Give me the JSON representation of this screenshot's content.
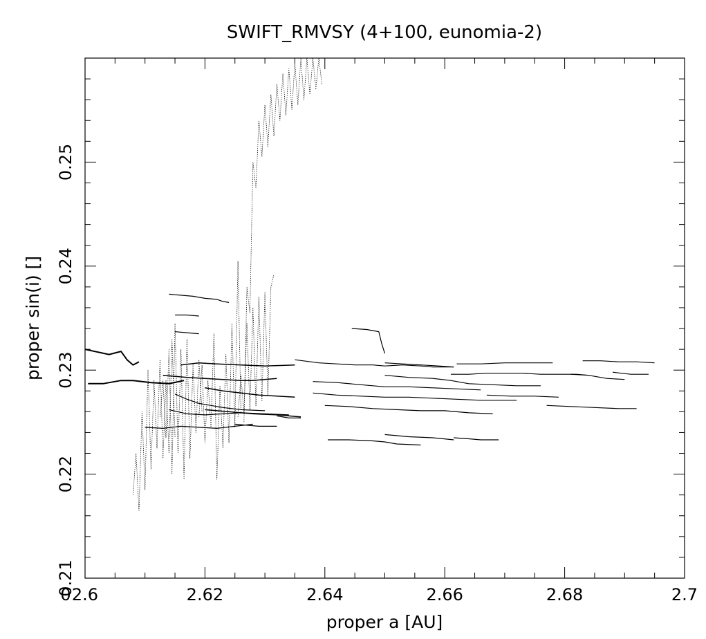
{
  "chart_data": {
    "type": "line",
    "title": "SWIFT_RMVSY (4+100, eunomia-2)",
    "xlabel": "proper a [AU]",
    "ylabel": "proper sin(i) []",
    "xlim": [
      2.6,
      2.7
    ],
    "ylim": [
      0.21,
      0.26
    ],
    "xticks": [
      {
        "value": 2.6,
        "label": "2.6"
      },
      {
        "value": 2.62,
        "label": "2.62"
      },
      {
        "value": 2.64,
        "label": "2.64"
      },
      {
        "value": 2.66,
        "label": "2.66"
      },
      {
        "value": 2.68,
        "label": "2.68"
      },
      {
        "value": 2.7,
        "label": "2.7"
      }
    ],
    "yticks": [
      {
        "value": 0.21,
        "label": "0.21"
      },
      {
        "value": 0.22,
        "label": "0.22"
      },
      {
        "value": 0.23,
        "label": "0.23"
      },
      {
        "value": 0.24,
        "label": "0.24"
      },
      {
        "value": 0.25,
        "label": "0.25"
      }
    ],
    "origin_label": "0",
    "grid": false,
    "legend": "none",
    "line_color": "#000000",
    "series": [
      {
        "style": "solid",
        "width": 2,
        "x": [
          2.6,
          2.604,
          2.606,
          2.607,
          2.608,
          2.609
        ],
        "y": [
          0.232,
          0.2315,
          0.2318,
          0.231,
          0.2305,
          0.2308
        ]
      },
      {
        "style": "solid",
        "width": 2,
        "x": [
          2.6005,
          2.603,
          2.606,
          2.608,
          2.611,
          2.614,
          2.6165
        ],
        "y": [
          0.2287,
          0.2287,
          0.229,
          0.229,
          0.2288,
          0.2287,
          0.229
        ]
      },
      {
        "style": "solid",
        "width": 1.5,
        "x": [
          2.613,
          2.617,
          2.62,
          2.623,
          2.626,
          2.628,
          2.632
        ],
        "y": [
          0.2295,
          0.2293,
          0.2292,
          0.2291,
          0.229,
          0.229,
          0.2292
        ]
      },
      {
        "style": "solid",
        "width": 1.5,
        "x": [
          2.616,
          2.619,
          2.622,
          2.626,
          2.63,
          2.635
        ],
        "y": [
          0.2305,
          0.2307,
          0.2306,
          0.2305,
          0.2304,
          0.2305
        ]
      },
      {
        "style": "solid",
        "width": 1.5,
        "x": [
          2.62,
          2.623,
          2.626,
          2.629,
          2.632,
          2.635
        ],
        "y": [
          0.2283,
          0.228,
          0.2278,
          0.2276,
          0.2275,
          0.2274
        ]
      },
      {
        "style": "solid",
        "width": 1.5,
        "x": [
          2.62,
          2.624,
          2.628,
          2.632,
          2.636
        ],
        "y": [
          0.2262,
          0.226,
          0.2258,
          0.2257,
          0.2255
        ]
      },
      {
        "style": "solid",
        "width": 1.2,
        "x": [
          2.61,
          2.613,
          2.616,
          2.619,
          2.622,
          2.625,
          2.628
        ],
        "y": [
          0.2245,
          0.2244,
          0.2246,
          0.2245,
          0.2244,
          0.2246,
          0.2248
        ]
      },
      {
        "style": "solid",
        "width": 1.2,
        "x": [
          2.614,
          2.616,
          2.618,
          2.62,
          2.622,
          2.623,
          2.624
        ],
        "y": [
          0.2373,
          0.2372,
          0.2371,
          0.2369,
          0.2368,
          0.2366,
          0.2365
        ]
      },
      {
        "style": "solid",
        "width": 1.2,
        "x": [
          2.615,
          2.617,
          2.619
        ],
        "y": [
          0.2353,
          0.2353,
          0.2352
        ]
      },
      {
        "style": "solid",
        "width": 1.2,
        "x": [
          2.615,
          2.617,
          2.619
        ],
        "y": [
          0.2337,
          0.2336,
          0.2335
        ]
      },
      {
        "style": "solid",
        "width": 1.2,
        "x": [
          2.615,
          2.617,
          2.619,
          2.621,
          2.623,
          2.626,
          2.63
        ],
        "y": [
          0.2277,
          0.2272,
          0.2268,
          0.2266,
          0.2264,
          0.2262,
          0.2261
        ]
      },
      {
        "style": "solid",
        "width": 1.2,
        "x": [
          2.614,
          2.617,
          2.62,
          2.623,
          2.626,
          2.63,
          2.634
        ],
        "y": [
          0.2262,
          0.2258,
          0.2257,
          0.2258,
          0.2259,
          0.2258,
          0.2257
        ]
      },
      {
        "style": "solid",
        "width": 1.2,
        "x": [
          2.635,
          2.639,
          2.642,
          2.645,
          2.648,
          2.65,
          2.653,
          2.656,
          2.658,
          2.6615
        ],
        "y": [
          0.231,
          0.2307,
          0.2306,
          0.2305,
          0.2305,
          0.2304,
          0.2305,
          0.2304,
          0.2303,
          0.2303
        ]
      },
      {
        "style": "solid",
        "width": 1.2,
        "x": [
          2.6445,
          2.647,
          2.649,
          2.6495,
          2.65
        ],
        "y": [
          0.234,
          0.2339,
          0.2337,
          0.2325,
          0.2316
        ]
      },
      {
        "style": "solid",
        "width": 1.2,
        "x": [
          2.65,
          2.653,
          2.656,
          2.659,
          2.6615
        ],
        "y": [
          0.2307,
          0.2306,
          0.2305,
          0.2304,
          0.2303
        ]
      },
      {
        "style": "solid",
        "width": 1.2,
        "x": [
          2.638,
          2.642,
          2.646,
          2.65,
          2.654,
          2.658,
          2.662,
          2.666
        ],
        "y": [
          0.2289,
          0.2288,
          0.2286,
          0.2284,
          0.2284,
          0.2283,
          0.2282,
          0.2281
        ]
      },
      {
        "style": "solid",
        "width": 1.2,
        "x": [
          2.638,
          2.642,
          2.646,
          2.65,
          2.654,
          2.658,
          2.662,
          2.666,
          2.672
        ],
        "y": [
          0.2278,
          0.2276,
          0.2275,
          0.2274,
          0.2274,
          0.2273,
          0.2272,
          0.2271,
          0.2271
        ]
      },
      {
        "style": "solid",
        "width": 1.2,
        "x": [
          2.64,
          2.644,
          2.648,
          2.652,
          2.656,
          2.66,
          2.664,
          2.668
        ],
        "y": [
          0.2266,
          0.2265,
          0.2263,
          0.2262,
          0.2261,
          0.2261,
          0.2259,
          0.2258
        ]
      },
      {
        "style": "solid",
        "width": 1.2,
        "x": [
          2.65,
          2.654,
          2.658,
          2.6615
        ],
        "y": [
          0.2238,
          0.2236,
          0.2235,
          0.2233
        ]
      },
      {
        "style": "solid",
        "width": 1.2,
        "x": [
          2.6615,
          2.664,
          2.666,
          2.669
        ],
        "y": [
          0.2235,
          0.2234,
          0.2233,
          0.2233
        ]
      },
      {
        "style": "solid",
        "width": 1.2,
        "x": [
          2.6405,
          2.644,
          2.648,
          2.65,
          2.652,
          2.656
        ],
        "y": [
          0.2233,
          0.2233,
          0.2232,
          0.2231,
          0.2229,
          0.2228
        ]
      },
      {
        "style": "solid",
        "width": 1.2,
        "x": [
          2.65,
          2.654,
          2.658,
          2.661,
          2.664,
          2.668,
          2.672,
          2.676
        ],
        "y": [
          0.2295,
          0.2293,
          0.2292,
          0.229,
          0.2287,
          0.2286,
          0.2285,
          0.2285
        ]
      },
      {
        "style": "solid",
        "width": 1.2,
        "x": [
          2.662,
          2.666,
          2.67,
          2.674,
          2.678
        ],
        "y": [
          0.2306,
          0.2306,
          0.2307,
          0.2307,
          0.2307
        ]
      },
      {
        "style": "solid",
        "width": 1.2,
        "x": [
          2.661,
          2.664,
          2.667,
          2.67,
          2.673,
          2.676,
          2.679,
          2.682,
          2.684
        ],
        "y": [
          0.2296,
          0.2296,
          0.2297,
          0.2297,
          0.2297,
          0.2296,
          0.2296,
          0.2296,
          0.2295
        ]
      },
      {
        "style": "solid",
        "width": 1.2,
        "x": [
          2.667,
          2.671,
          2.675,
          2.679
        ],
        "y": [
          0.2276,
          0.2275,
          0.2275,
          0.2274
        ]
      },
      {
        "style": "solid",
        "width": 1.2,
        "x": [
          2.677,
          2.681,
          2.685,
          2.689,
          2.692
        ],
        "y": [
          0.2266,
          0.2265,
          0.2264,
          0.2263,
          0.2263
        ]
      },
      {
        "style": "solid",
        "width": 1.2,
        "x": [
          2.683,
          2.686,
          2.689,
          2.692,
          2.695
        ],
        "y": [
          0.2309,
          0.2309,
          0.2308,
          0.2308,
          0.2307
        ]
      },
      {
        "style": "solid",
        "width": 1.2,
        "x": [
          2.681,
          2.684,
          2.687,
          2.69
        ],
        "y": [
          0.2296,
          0.2295,
          0.2292,
          0.2291
        ]
      },
      {
        "style": "solid",
        "width": 1.2,
        "x": [
          2.688,
          2.691,
          2.694
        ],
        "y": [
          0.2298,
          0.2296,
          0.2296
        ]
      },
      {
        "style": "solid",
        "width": 1.2,
        "x": [
          2.625,
          2.627,
          2.629,
          2.632
        ],
        "y": [
          0.2248,
          0.2247,
          0.2246,
          0.2246
        ]
      },
      {
        "style": "solid",
        "width": 1.2,
        "x": [
          2.632,
          2.634,
          2.636
        ],
        "y": [
          0.2256,
          0.2254,
          0.2254
        ]
      },
      {
        "style": "dotted",
        "width": 0.8,
        "x": [
          2.608,
          2.6085,
          2.609,
          2.6095,
          2.61,
          2.6105,
          2.611,
          2.6115,
          2.612,
          2.6125,
          2.613,
          2.6135,
          2.614,
          2.6145,
          2.615
        ],
        "y": [
          0.218,
          0.222,
          0.2165,
          0.226,
          0.2185,
          0.23,
          0.2205,
          0.229,
          0.2225,
          0.231,
          0.2215,
          0.229,
          0.222,
          0.233,
          0.2235
        ]
      },
      {
        "style": "dotted",
        "width": 0.8,
        "x": [
          2.6125,
          2.613,
          2.6135,
          2.614,
          2.6145,
          2.615,
          2.6155,
          2.616,
          2.6165,
          2.617,
          2.6175,
          2.618,
          2.6185,
          2.619,
          2.6195
        ],
        "y": [
          0.2255,
          0.229,
          0.2235,
          0.232,
          0.22,
          0.2345,
          0.222,
          0.232,
          0.2195,
          0.233,
          0.2215,
          0.2305,
          0.224,
          0.231,
          0.226
        ]
      },
      {
        "style": "dotted",
        "width": 0.8,
        "x": [
          2.619,
          2.6195,
          2.62,
          2.6205,
          2.621,
          2.6215,
          2.622,
          2.6225,
          2.623,
          2.6235,
          2.624,
          2.6245,
          2.625,
          2.6255,
          2.626
        ],
        "y": [
          0.2255,
          0.2305,
          0.223,
          0.229,
          0.2245,
          0.2335,
          0.2195,
          0.2285,
          0.2225,
          0.2315,
          0.223,
          0.2345,
          0.2245,
          0.2405,
          0.226
        ]
      },
      {
        "style": "dotted",
        "width": 0.8,
        "x": [
          2.6255,
          2.626,
          2.6265,
          2.627,
          2.6275,
          2.628,
          2.6285,
          2.629,
          2.6295,
          2.63,
          2.6305,
          2.631,
          2.6315
        ],
        "y": [
          0.2255,
          0.2295,
          0.2258,
          0.2345,
          0.2262,
          0.236,
          0.2265,
          0.237,
          0.227,
          0.2375,
          0.2275,
          0.238,
          0.2392
        ]
      },
      {
        "style": "dotted",
        "width": 0.8,
        "x": [
          2.6265,
          2.627,
          2.6275,
          2.628,
          2.6285,
          2.629,
          2.6295,
          2.63,
          2.6305,
          2.631,
          2.6315,
          2.632,
          2.6325,
          2.633,
          2.6335,
          2.634,
          2.6345,
          2.635,
          2.6355,
          2.636,
          2.6365,
          2.637,
          2.6375,
          2.638,
          2.6385,
          2.639,
          2.6395
        ],
        "y": [
          0.225,
          0.238,
          0.2355,
          0.25,
          0.2475,
          0.254,
          0.2505,
          0.2555,
          0.2515,
          0.2565,
          0.2525,
          0.2575,
          0.254,
          0.2585,
          0.2545,
          0.259,
          0.255,
          0.2595,
          0.2555,
          0.26,
          0.256,
          0.26,
          0.2565,
          0.26,
          0.257,
          0.26,
          0.2575
        ]
      }
    ]
  }
}
